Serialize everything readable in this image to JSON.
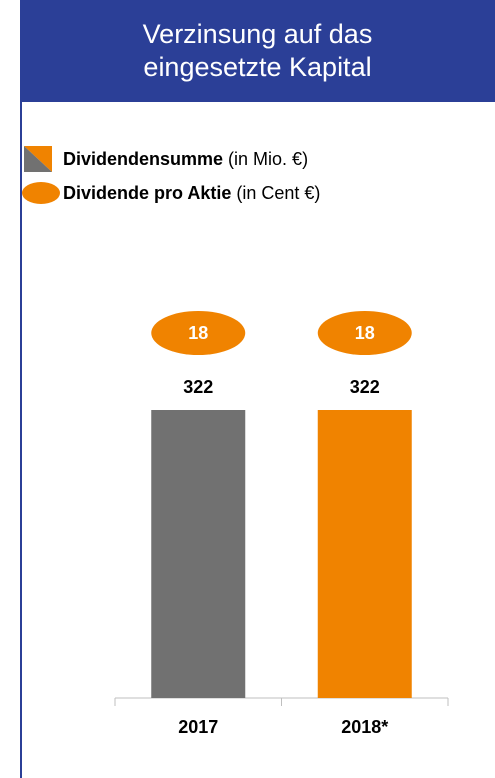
{
  "chart_data": {
    "type": "bar",
    "title": "Verzinsung auf das eingesetzte Kapital",
    "categories": [
      "2017",
      "2018*"
    ],
    "series": [
      {
        "name": "Dividendensumme",
        "unit": "(in Mio. €)",
        "colors": [
          "#717171",
          "#f08300"
        ],
        "values": [
          322,
          322
        ]
      },
      {
        "name": "Dividende pro Aktie",
        "unit": "(in Cent €)",
        "color": "#f08300",
        "values": [
          18,
          18
        ]
      }
    ]
  }
}
